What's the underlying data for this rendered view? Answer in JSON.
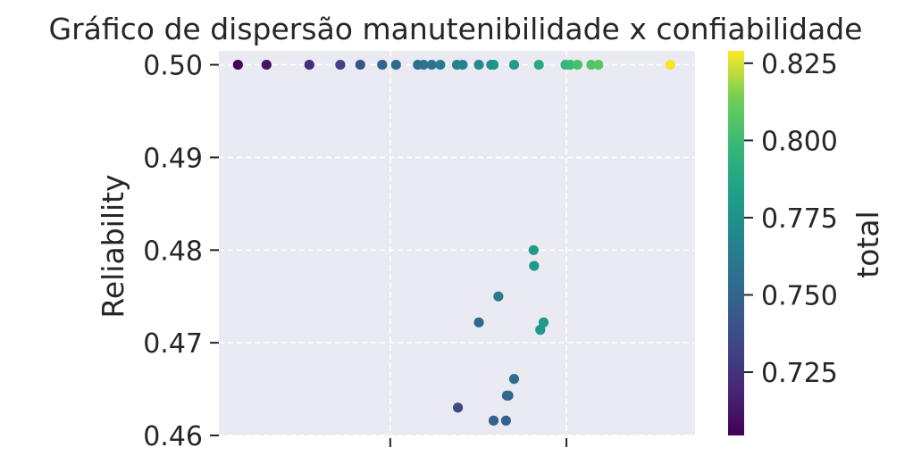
{
  "chart_data": {
    "type": "scatter",
    "title": "Gráfico de dispersão manutenibilidade x confiabilidade",
    "xlabel": "",
    "ylabel": "Reliability",
    "ylim": [
      0.46,
      0.5015
    ],
    "xlim": [
      0,
      1
    ],
    "x_tick_values": [
      0.36,
      0.73
    ],
    "y_ticks": [
      0.46,
      0.47,
      0.48,
      0.49,
      0.5
    ],
    "y_tick_labels": [
      "0.46",
      "0.47",
      "0.48",
      "0.49",
      "0.50"
    ],
    "x_tick_labels_visible": false,
    "grid": true,
    "background": "#eaeaf2",
    "colormap": "viridis",
    "colorbar": {
      "label": "total",
      "range": [
        0.7045,
        0.829
      ],
      "ticks": [
        0.725,
        0.75,
        0.775,
        0.8,
        0.825
      ],
      "tick_labels": [
        "0.725",
        "0.750",
        "0.775",
        "0.800",
        "0.825"
      ]
    },
    "points": [
      {
        "x": 0.04,
        "y": 0.5,
        "c": 0.705
      },
      {
        "x": 0.1,
        "y": 0.5,
        "c": 0.712
      },
      {
        "x": 0.19,
        "y": 0.5,
        "c": 0.722
      },
      {
        "x": 0.255,
        "y": 0.5,
        "c": 0.732
      },
      {
        "x": 0.297,
        "y": 0.5,
        "c": 0.74
      },
      {
        "x": 0.343,
        "y": 0.5,
        "c": 0.748
      },
      {
        "x": 0.372,
        "y": 0.5,
        "c": 0.752
      },
      {
        "x": 0.418,
        "y": 0.5,
        "c": 0.755
      },
      {
        "x": 0.43,
        "y": 0.5,
        "c": 0.757
      },
      {
        "x": 0.447,
        "y": 0.5,
        "c": 0.759
      },
      {
        "x": 0.465,
        "y": 0.5,
        "c": 0.762
      },
      {
        "x": 0.5,
        "y": 0.5,
        "c": 0.766
      },
      {
        "x": 0.512,
        "y": 0.5,
        "c": 0.768
      },
      {
        "x": 0.546,
        "y": 0.5,
        "c": 0.772
      },
      {
        "x": 0.572,
        "y": 0.5,
        "c": 0.775
      },
      {
        "x": 0.577,
        "y": 0.5,
        "c": 0.776
      },
      {
        "x": 0.62,
        "y": 0.5,
        "c": 0.782
      },
      {
        "x": 0.672,
        "y": 0.5,
        "c": 0.789
      },
      {
        "x": 0.728,
        "y": 0.5,
        "c": 0.797
      },
      {
        "x": 0.738,
        "y": 0.5,
        "c": 0.799
      },
      {
        "x": 0.753,
        "y": 0.5,
        "c": 0.803
      },
      {
        "x": 0.782,
        "y": 0.5,
        "c": 0.806
      },
      {
        "x": 0.797,
        "y": 0.5,
        "c": 0.808
      },
      {
        "x": 0.948,
        "y": 0.5,
        "c": 0.828
      },
      {
        "x": 0.661,
        "y": 0.48,
        "c": 0.78
      },
      {
        "x": 0.662,
        "y": 0.4783,
        "c": 0.779
      },
      {
        "x": 0.587,
        "y": 0.475,
        "c": 0.763
      },
      {
        "x": 0.546,
        "y": 0.4722,
        "c": 0.752
      },
      {
        "x": 0.682,
        "y": 0.4722,
        "c": 0.779
      },
      {
        "x": 0.675,
        "y": 0.4714,
        "c": 0.778
      },
      {
        "x": 0.62,
        "y": 0.4661,
        "c": 0.754
      },
      {
        "x": 0.605,
        "y": 0.4643,
        "c": 0.751
      },
      {
        "x": 0.608,
        "y": 0.4643,
        "c": 0.751
      },
      {
        "x": 0.502,
        "y": 0.463,
        "c": 0.735
      },
      {
        "x": 0.577,
        "y": 0.4616,
        "c": 0.748
      },
      {
        "x": 0.603,
        "y": 0.4616,
        "c": 0.748
      }
    ]
  }
}
